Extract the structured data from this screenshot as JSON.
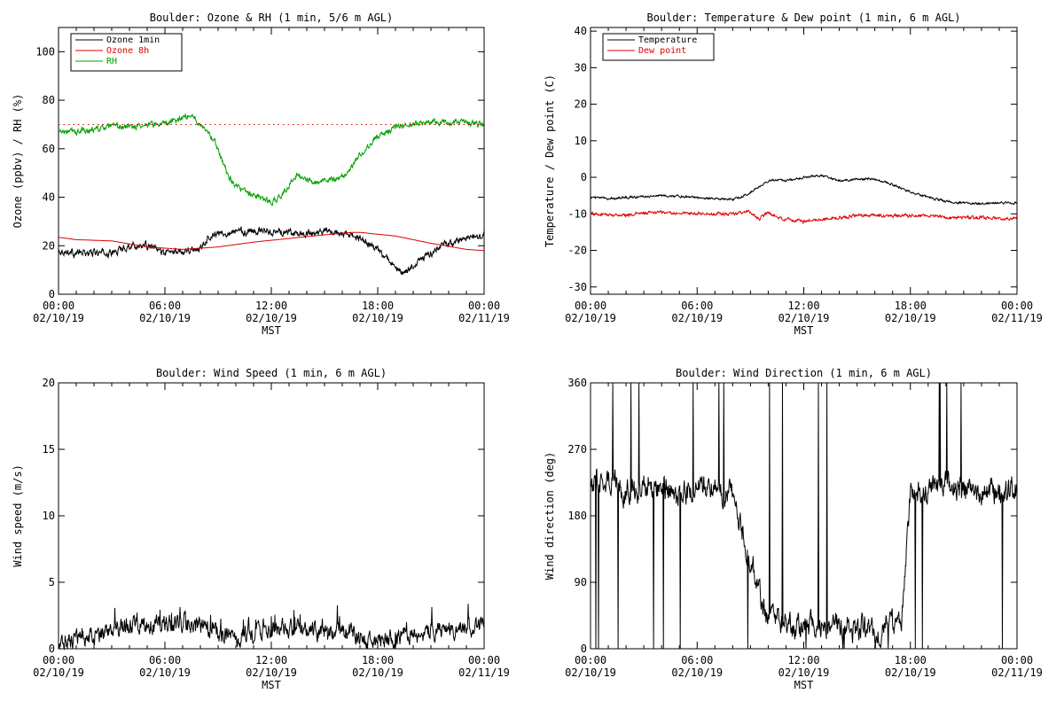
{
  "time_labels": {
    "xticks": [
      {
        "time": "00:00",
        "date": "02/10/19"
      },
      {
        "time": "06:00",
        "date": "02/10/19"
      },
      {
        "time": "12:00",
        "date": "02/10/19"
      },
      {
        "time": "18:00",
        "date": "02/10/19"
      },
      {
        "time": "00:00",
        "date": "02/11/19"
      }
    ],
    "xlabel": "MST"
  },
  "chart_data": [
    {
      "id": "ozone-rh",
      "type": "line",
      "title": "Boulder: Ozone & RH (1 min, 5/6 m AGL)",
      "xlabel": "MST",
      "ylabel": "Ozone (ppbv) / RH (%)",
      "xlim_hours": [
        0,
        24
      ],
      "ylim": [
        0,
        110
      ],
      "yticks": [
        0,
        20,
        40,
        60,
        80,
        100
      ],
      "legend": {
        "position": "top-left",
        "entries": [
          {
            "name": "Ozone 1min",
            "color": "#000000"
          },
          {
            "name": "Ozone 8h",
            "color": "#dd0000"
          },
          {
            "name": "RH",
            "color": "#00a000"
          }
        ]
      },
      "series": [
        {
          "name": "Ozone 1min",
          "color": "#000000",
          "noise": 1.2,
          "x_hours": [
            0,
            1,
            2,
            3,
            4,
            5,
            6,
            7,
            8,
            8.5,
            9,
            10,
            11,
            12,
            13,
            14,
            15,
            16,
            17,
            18,
            19,
            19.5,
            20,
            21,
            22,
            23,
            24
          ],
          "y": [
            18,
            17,
            17,
            17,
            20,
            20,
            17,
            18,
            19,
            24,
            25,
            26,
            26,
            26,
            25,
            25,
            26,
            25,
            23,
            18,
            11,
            8,
            12,
            17,
            21,
            23,
            24
          ]
        },
        {
          "name": "Ozone 8h",
          "color": "#dd0000",
          "noise": 0,
          "x_hours": [
            0,
            1,
            3,
            5,
            7,
            9,
            11,
            13,
            15,
            16.5,
            17,
            19,
            21,
            23,
            24
          ],
          "y": [
            23.5,
            22.5,
            22,
            19.5,
            18.5,
            19.5,
            21.5,
            23,
            24.5,
            25.5,
            25.5,
            24,
            21,
            18.5,
            18
          ]
        },
        {
          "name": "RH",
          "color": "#00a000",
          "noise": 1.0,
          "x_hours": [
            0,
            1,
            2,
            3,
            4,
            5,
            6,
            7,
            7.5,
            8,
            8.5,
            9,
            9.5,
            10,
            10.5,
            11,
            11.5,
            12,
            12.5,
            13,
            13.5,
            14,
            14.5,
            15,
            16,
            16.5,
            17,
            18,
            19,
            20,
            21,
            22,
            23,
            24
          ],
          "y": [
            67,
            67,
            68,
            69,
            69,
            70,
            70,
            73,
            74,
            70,
            67,
            60,
            50,
            45,
            42,
            41,
            39,
            38,
            40,
            45,
            50,
            47,
            46,
            47,
            48,
            52,
            58,
            65,
            69,
            70,
            71,
            71,
            71,
            70
          ]
        },
        {
          "name": "RH reference",
          "color": "#dd0000",
          "dotted": true,
          "noise": 0,
          "x_hours": [
            0,
            24
          ],
          "y": [
            70,
            70
          ]
        }
      ]
    },
    {
      "id": "temp-dew",
      "type": "line",
      "title": "Boulder: Temperature & Dew point (1 min, 6 m AGL)",
      "xlabel": "MST",
      "ylabel": "Temperature / Dew point (C)",
      "xlim_hours": [
        0,
        24
      ],
      "ylim": [
        -32,
        41
      ],
      "yticks": [
        -30,
        -20,
        -10,
        0,
        10,
        20,
        30,
        40
      ],
      "legend": {
        "position": "top-left",
        "entries": [
          {
            "name": "Temperature",
            "color": "#000000"
          },
          {
            "name": "Dew point",
            "color": "#dd0000"
          }
        ]
      },
      "series": [
        {
          "name": "Temperature",
          "color": "#000000",
          "noise": 0.25,
          "x_hours": [
            0,
            1,
            2,
            3,
            4,
            5,
            6,
            7,
            8,
            8.5,
            9,
            10,
            10.5,
            11,
            12,
            13,
            14,
            15,
            16,
            17,
            18,
            19,
            20,
            21,
            22,
            23,
            24
          ],
          "y": [
            -5.5,
            -5.8,
            -5.5,
            -5.2,
            -5,
            -5.2,
            -5.5,
            -5.8,
            -6,
            -5.5,
            -4,
            -1,
            -0.5,
            -1,
            0,
            0.5,
            -1,
            -0.5,
            -0.5,
            -2,
            -4,
            -5.5,
            -6.5,
            -7,
            -7.2,
            -7,
            -7
          ]
        },
        {
          "name": "Dew point",
          "color": "#dd0000",
          "noise": 0.35,
          "x_hours": [
            0,
            1,
            2,
            3,
            4,
            5,
            6,
            7,
            8,
            9,
            9.5,
            10,
            10.5,
            11,
            12,
            13,
            14,
            15,
            16,
            17,
            18,
            19,
            20,
            21,
            22,
            23,
            24
          ],
          "y": [
            -10,
            -10.3,
            -10.3,
            -9.8,
            -9.6,
            -9.8,
            -9.8,
            -10,
            -10,
            -9.5,
            -11.5,
            -9.5,
            -11,
            -11.5,
            -12,
            -11.5,
            -11,
            -10.5,
            -10.5,
            -10.5,
            -10.5,
            -10.5,
            -11,
            -11,
            -11,
            -11.3,
            -11
          ]
        }
      ]
    },
    {
      "id": "wind-speed",
      "type": "line",
      "title": "Boulder: Wind Speed (1 min, 6 m AGL)",
      "xlabel": "MST",
      "ylabel": "Wind speed (m/s)",
      "xlim_hours": [
        0,
        24
      ],
      "ylim": [
        0,
        20
      ],
      "yticks": [
        0,
        5,
        10,
        15,
        20
      ],
      "legend": null,
      "series": [
        {
          "name": "Wind speed",
          "color": "#000000",
          "noise": 0.55,
          "clip_min": 0,
          "x_hours": [
            0,
            1,
            2,
            3,
            4,
            5,
            6,
            7,
            8,
            9,
            10,
            11,
            12,
            13,
            14,
            15,
            16,
            17,
            17.5,
            18,
            19,
            20,
            21,
            22,
            23,
            24
          ],
          "y": [
            0.3,
            0.6,
            1,
            1.3,
            1.8,
            1.6,
            2,
            2,
            1.8,
            1.2,
            0.8,
            1.2,
            1.4,
            1.5,
            1.4,
            1.2,
            1.3,
            0.9,
            0.4,
            0.5,
            0.9,
            1.1,
            1.3,
            1.4,
            1.6,
            1.7
          ]
        }
      ]
    },
    {
      "id": "wind-direction",
      "type": "line",
      "title": "Boulder: Wind Direction (1 min, 6 m AGL)",
      "xlabel": "MST",
      "ylabel": "Wind direction (deg)",
      "xlim_hours": [
        0,
        24
      ],
      "ylim": [
        0,
        360
      ],
      "yticks": [
        0,
        90,
        180,
        270,
        360
      ],
      "legend": null,
      "series": [
        {
          "name": "Wind direction",
          "color": "#000000",
          "noise": 14,
          "clip_min": 0,
          "clip_max": 360,
          "x_hours": [
            0,
            1,
            2,
            3,
            4,
            5,
            6,
            7,
            8,
            8.5,
            9,
            9.5,
            10,
            11,
            12,
            13,
            14,
            15,
            16,
            17,
            17.5,
            18,
            19,
            20,
            21,
            22,
            23,
            24
          ],
          "y": [
            220,
            230,
            210,
            220,
            215,
            210,
            220,
            215,
            210,
            160,
            120,
            80,
            40,
            35,
            30,
            30,
            30,
            28,
            25,
            30,
            40,
            210,
            215,
            220,
            215,
            210,
            215,
            215
          ]
        }
      ]
    }
  ]
}
